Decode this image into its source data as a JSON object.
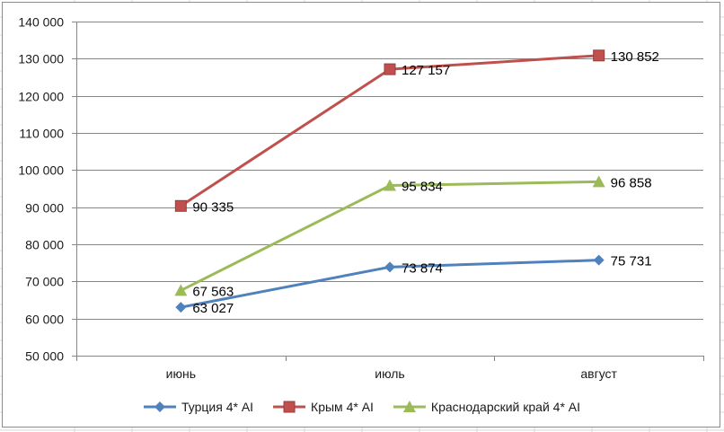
{
  "chart_data": {
    "type": "line",
    "categories": [
      "июнь",
      "июль",
      "август"
    ],
    "series": [
      {
        "name": "Турция 4* AI",
        "values": [
          63027,
          73874,
          75731
        ],
        "labels": [
          "63 027",
          "73 874",
          "75 731"
        ],
        "color": "#4f81bd",
        "marker": "diamond"
      },
      {
        "name": "Крым 4* AI",
        "values": [
          90335,
          127157,
          130852
        ],
        "labels": [
          "90 335",
          "127 157",
          "130 852"
        ],
        "color": "#c0504d",
        "marker": "square"
      },
      {
        "name": "Краснодарский край 4* AI",
        "values": [
          67563,
          95834,
          96858
        ],
        "labels": [
          "67 563",
          "95 834",
          "96 858"
        ],
        "color": "#9bbb59",
        "marker": "triangle"
      }
    ],
    "ylim": [
      50000,
      140000
    ],
    "yticks": [
      50000,
      60000,
      70000,
      80000,
      90000,
      100000,
      110000,
      120000,
      130000,
      140000
    ],
    "ytick_labels": [
      "50 000",
      "60 000",
      "70 000",
      "80 000",
      "90 000",
      "100 000",
      "110 000",
      "120 000",
      "130 000",
      "140 000"
    ],
    "grid": true,
    "legend_position": "bottom",
    "title": "",
    "xlabel": "",
    "ylabel": ""
  },
  "colors": {
    "gridline": "#868686",
    "axis": "#868686",
    "sheet_grid": "#d9d9d9"
  }
}
